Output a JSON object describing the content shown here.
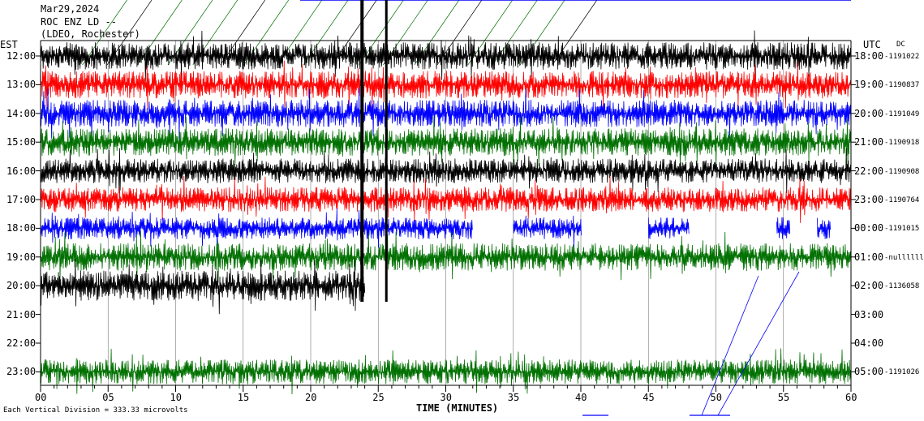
{
  "header": {
    "date": "Mar29,2024",
    "station": "ROC ENZ LD --",
    "location": "(LDEO, Rochester)"
  },
  "left_timezone": "EST",
  "right_timezone": "UTC",
  "dc_label": "DC",
  "footer": {
    "scale_note": "Each Vertical Division =  333.33 microvolts",
    "xlabel": "TIME (MINUTES)"
  },
  "chart_data": {
    "type": "line",
    "title": "",
    "xlabel": "TIME (MINUTES)",
    "xlim": [
      0,
      60
    ],
    "x_ticks": [
      "00",
      "05",
      "10",
      "15",
      "20",
      "25",
      "30",
      "35",
      "40",
      "45",
      "50",
      "55",
      "60"
    ],
    "trace_colors": [
      "#000000",
      "#ff0000",
      "#0000ff",
      "#007000"
    ],
    "rows": [
      {
        "est": "12:00",
        "utc": "18:00",
        "dc": "1191022",
        "color": "#000000",
        "amp": 1.0,
        "segments": [
          [
            0,
            60
          ]
        ]
      },
      {
        "est": "13:00",
        "utc": "19:00",
        "dc": "1190837",
        "color": "#ff0000",
        "amp": 1.0,
        "segments": [
          [
            0,
            60
          ]
        ]
      },
      {
        "est": "14:00",
        "utc": "20:00",
        "dc": "1191049",
        "color": "#0000ff",
        "amp": 1.0,
        "segments": [
          [
            0,
            60
          ]
        ]
      },
      {
        "est": "15:00",
        "utc": "21:00",
        "dc": "1190918",
        "color": "#007000",
        "amp": 1.0,
        "segments": [
          [
            0,
            60
          ]
        ]
      },
      {
        "est": "16:00",
        "utc": "22:00",
        "dc": "1190908",
        "color": "#000000",
        "amp": 0.9,
        "segments": [
          [
            0,
            60
          ]
        ]
      },
      {
        "est": "17:00",
        "utc": "23:00",
        "dc": "1190764",
        "color": "#ff0000",
        "amp": 0.9,
        "segments": [
          [
            0,
            60
          ]
        ]
      },
      {
        "est": "18:00",
        "utc": "00:00",
        "dc": "1191015",
        "color": "#0000ff",
        "amp": 0.8,
        "segments": [
          [
            0,
            32
          ],
          [
            35,
            40
          ],
          [
            45,
            48
          ],
          [
            54.5,
            55.5
          ],
          [
            57.5,
            58.5
          ]
        ]
      },
      {
        "est": "19:00",
        "utc": "01:00",
        "dc": "nullllll",
        "color": "#007000",
        "amp": 1.0,
        "segments": [
          [
            0,
            60
          ]
        ]
      },
      {
        "est": "20:00",
        "utc": "02:00",
        "dc": "1136058",
        "color": "#000000",
        "amp": 1.1,
        "segments": [
          [
            0,
            24
          ]
        ]
      },
      {
        "est": "21:00",
        "utc": "03:00",
        "dc": "",
        "color": "#007000",
        "amp": 0.0,
        "segments": []
      },
      {
        "est": "22:00",
        "utc": "04:00",
        "dc": "",
        "color": "#007000",
        "amp": 0.0,
        "segments": []
      },
      {
        "est": "23:00",
        "utc": "05:00",
        "dc": "1191026",
        "color": "#007000",
        "amp": 0.9,
        "segments": [
          [
            0,
            60
          ]
        ]
      }
    ]
  }
}
